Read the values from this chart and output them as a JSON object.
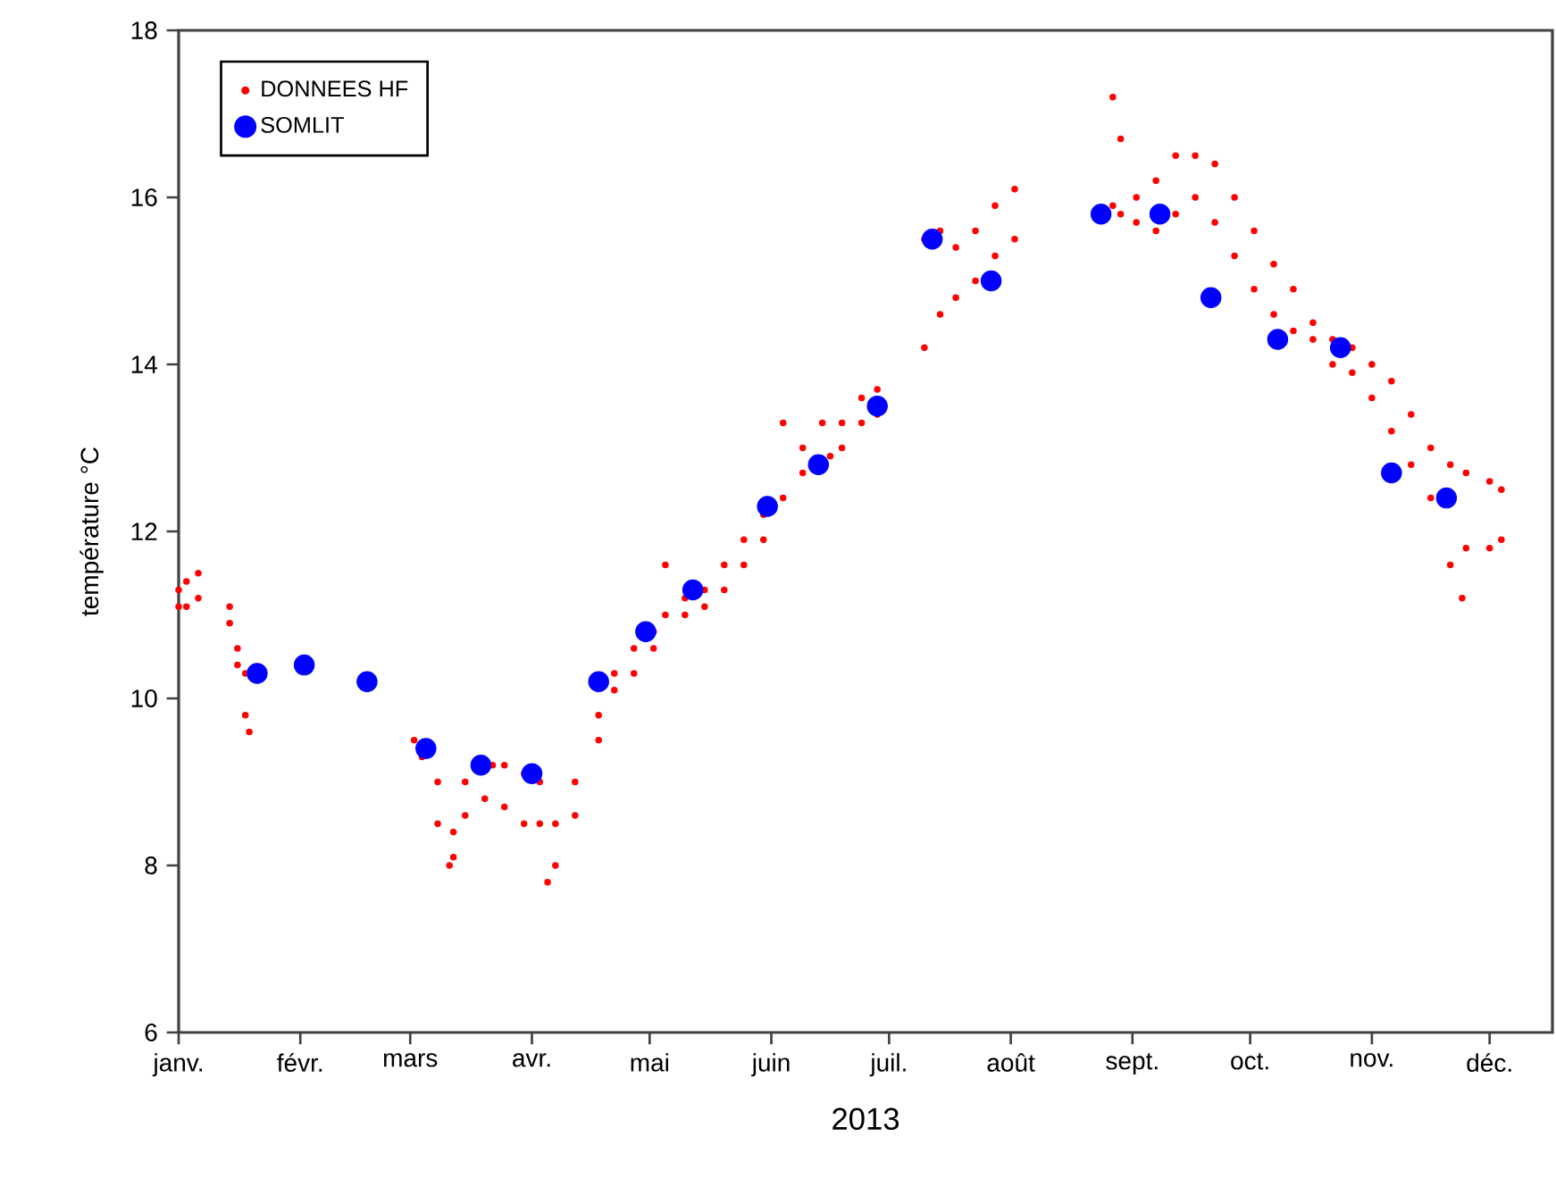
{
  "chart_data": {
    "type": "scatter",
    "xlabel": "2013",
    "ylabel": "température °C",
    "xlim": [
      "2013-01-01",
      "2013-12-17"
    ],
    "ylim": [
      6,
      18
    ],
    "yticks": [
      6,
      8,
      10,
      12,
      14,
      16,
      18
    ],
    "xticks": [
      {
        "value": "2013-01-01",
        "label": "janv."
      },
      {
        "value": "2013-02-01",
        "label": "févr."
      },
      {
        "value": "2013-03-01",
        "label": "mars"
      },
      {
        "value": "2013-04-01",
        "label": "avr."
      },
      {
        "value": "2013-05-01",
        "label": "mai"
      },
      {
        "value": "2013-06-01",
        "label": "juin"
      },
      {
        "value": "2013-07-01",
        "label": "juil."
      },
      {
        "value": "2013-08-01",
        "label": "août"
      },
      {
        "value": "2013-09-01",
        "label": "sept."
      },
      {
        "value": "2013-10-01",
        "label": "oct."
      },
      {
        "value": "2013-11-01",
        "label": "nov."
      },
      {
        "value": "2013-12-01",
        "label": "déc."
      }
    ],
    "grid": false,
    "legend": "top left",
    "series": [
      {
        "name": "DONNEES HF",
        "color": "#ff0000",
        "x": [
          "2013-01-01",
          "2013-01-01",
          "2013-01-03",
          "2013-01-03",
          "2013-01-06",
          "2013-01-06",
          "2013-01-14",
          "2013-01-14",
          "2013-01-16",
          "2013-01-16",
          "2013-01-18",
          "2013-01-18",
          "2013-01-19",
          "2013-03-02",
          "2013-03-04",
          "2013-03-08",
          "2013-03-08",
          "2013-03-11",
          "2013-03-12",
          "2013-03-12",
          "2013-03-15",
          "2013-03-15",
          "2013-03-22",
          "2013-03-20",
          "2013-03-25",
          "2013-03-25",
          "2013-03-30",
          "2013-03-30",
          "2013-04-03",
          "2013-04-03",
          "2013-04-05",
          "2013-04-07",
          "2013-04-07",
          "2013-04-12",
          "2013-04-12",
          "2013-04-18",
          "2013-04-18",
          "2013-04-22",
          "2013-04-22",
          "2013-04-27",
          "2013-04-27",
          "2013-05-02",
          "2013-05-02",
          "2013-05-05",
          "2013-05-05",
          "2013-05-10",
          "2013-05-10",
          "2013-05-15",
          "2013-05-15",
          "2013-05-20",
          "2013-05-20",
          "2013-05-25",
          "2013-05-25",
          "2013-05-30",
          "2013-05-30",
          "2013-06-04",
          "2013-06-04",
          "2013-06-09",
          "2013-06-09",
          "2013-06-14",
          "2013-06-16",
          "2013-06-19",
          "2013-06-19",
          "2013-06-24",
          "2013-06-24",
          "2013-06-28",
          "2013-06-28",
          "2013-07-10",
          "2013-07-10",
          "2013-07-14",
          "2013-07-14",
          "2013-07-18",
          "2013-07-18",
          "2013-07-23",
          "2013-07-23",
          "2013-07-28",
          "2013-07-28",
          "2013-08-02",
          "2013-08-02",
          "2013-08-27",
          "2013-08-27",
          "2013-08-29",
          "2013-08-29",
          "2013-09-02",
          "2013-09-02",
          "2013-09-07",
          "2013-09-07",
          "2013-09-12",
          "2013-09-12",
          "2013-09-17",
          "2013-09-17",
          "2013-09-22",
          "2013-09-22",
          "2013-09-27",
          "2013-09-27",
          "2013-10-02",
          "2013-10-02",
          "2013-10-07",
          "2013-10-07",
          "2013-10-12",
          "2013-10-12",
          "2013-10-17",
          "2013-10-17",
          "2013-10-22",
          "2013-10-22",
          "2013-10-27",
          "2013-10-27",
          "2013-11-01",
          "2013-11-01",
          "2013-11-06",
          "2013-11-06",
          "2013-11-11",
          "2013-11-11",
          "2013-11-16",
          "2013-11-16",
          "2013-11-21",
          "2013-11-21",
          "2013-11-24",
          "2013-11-25",
          "2013-11-25",
          "2013-12-01",
          "2013-12-01",
          "2013-12-04",
          "2013-12-04"
        ],
        "values": [
          11.3,
          11.1,
          11.4,
          11.1,
          11.5,
          11.2,
          11.1,
          10.9,
          10.6,
          10.4,
          10.3,
          9.8,
          9.6,
          9.5,
          9.3,
          9.0,
          8.5,
          8.0,
          8.4,
          8.1,
          9.0,
          8.6,
          9.2,
          8.8,
          9.2,
          8.7,
          9.1,
          8.5,
          9.0,
          8.5,
          7.8,
          8.5,
          8.0,
          9.0,
          8.6,
          9.8,
          9.5,
          10.3,
          10.1,
          10.6,
          10.3,
          10.8,
          10.6,
          11.6,
          11.0,
          11.2,
          11.0,
          11.3,
          11.1,
          11.6,
          11.3,
          11.9,
          11.6,
          12.2,
          11.9,
          13.3,
          12.4,
          13.0,
          12.7,
          13.3,
          12.9,
          13.3,
          13.0,
          13.6,
          13.3,
          13.7,
          13.4,
          15.5,
          14.2,
          15.6,
          14.6,
          15.4,
          14.8,
          15.6,
          15.0,
          15.9,
          15.3,
          16.1,
          15.5,
          17.2,
          15.9,
          16.7,
          15.8,
          16.0,
          15.7,
          16.2,
          15.6,
          16.5,
          15.8,
          16.5,
          16.0,
          16.4,
          15.7,
          16.0,
          15.3,
          15.6,
          14.9,
          15.2,
          14.6,
          14.9,
          14.4,
          14.5,
          14.3,
          14.3,
          14.0,
          14.2,
          13.9,
          14.0,
          13.6,
          13.8,
          13.2,
          13.4,
          12.8,
          13.0,
          12.4,
          12.8,
          11.6,
          11.2,
          12.7,
          11.8,
          12.6,
          11.8,
          12.5,
          11.9
        ]
      },
      {
        "name": "SOMLIT",
        "color": "#0000ff",
        "x": [
          "2013-01-21",
          "2013-02-02",
          "2013-02-18",
          "2013-03-05",
          "2013-03-19",
          "2013-04-01",
          "2013-04-18",
          "2013-04-30",
          "2013-05-12",
          "2013-05-31",
          "2013-06-13",
          "2013-06-28",
          "2013-07-12",
          "2013-07-27",
          "2013-08-24",
          "2013-09-08",
          "2013-09-21",
          "2013-10-08",
          "2013-10-24",
          "2013-11-06",
          "2013-11-20"
        ],
        "values": [
          10.3,
          10.4,
          10.2,
          9.4,
          9.2,
          9.1,
          10.2,
          10.8,
          11.3,
          12.3,
          12.8,
          13.5,
          15.5,
          15.0,
          15.8,
          15.8,
          14.8,
          14.3,
          14.2,
          12.7,
          12.4
        ]
      }
    ]
  }
}
